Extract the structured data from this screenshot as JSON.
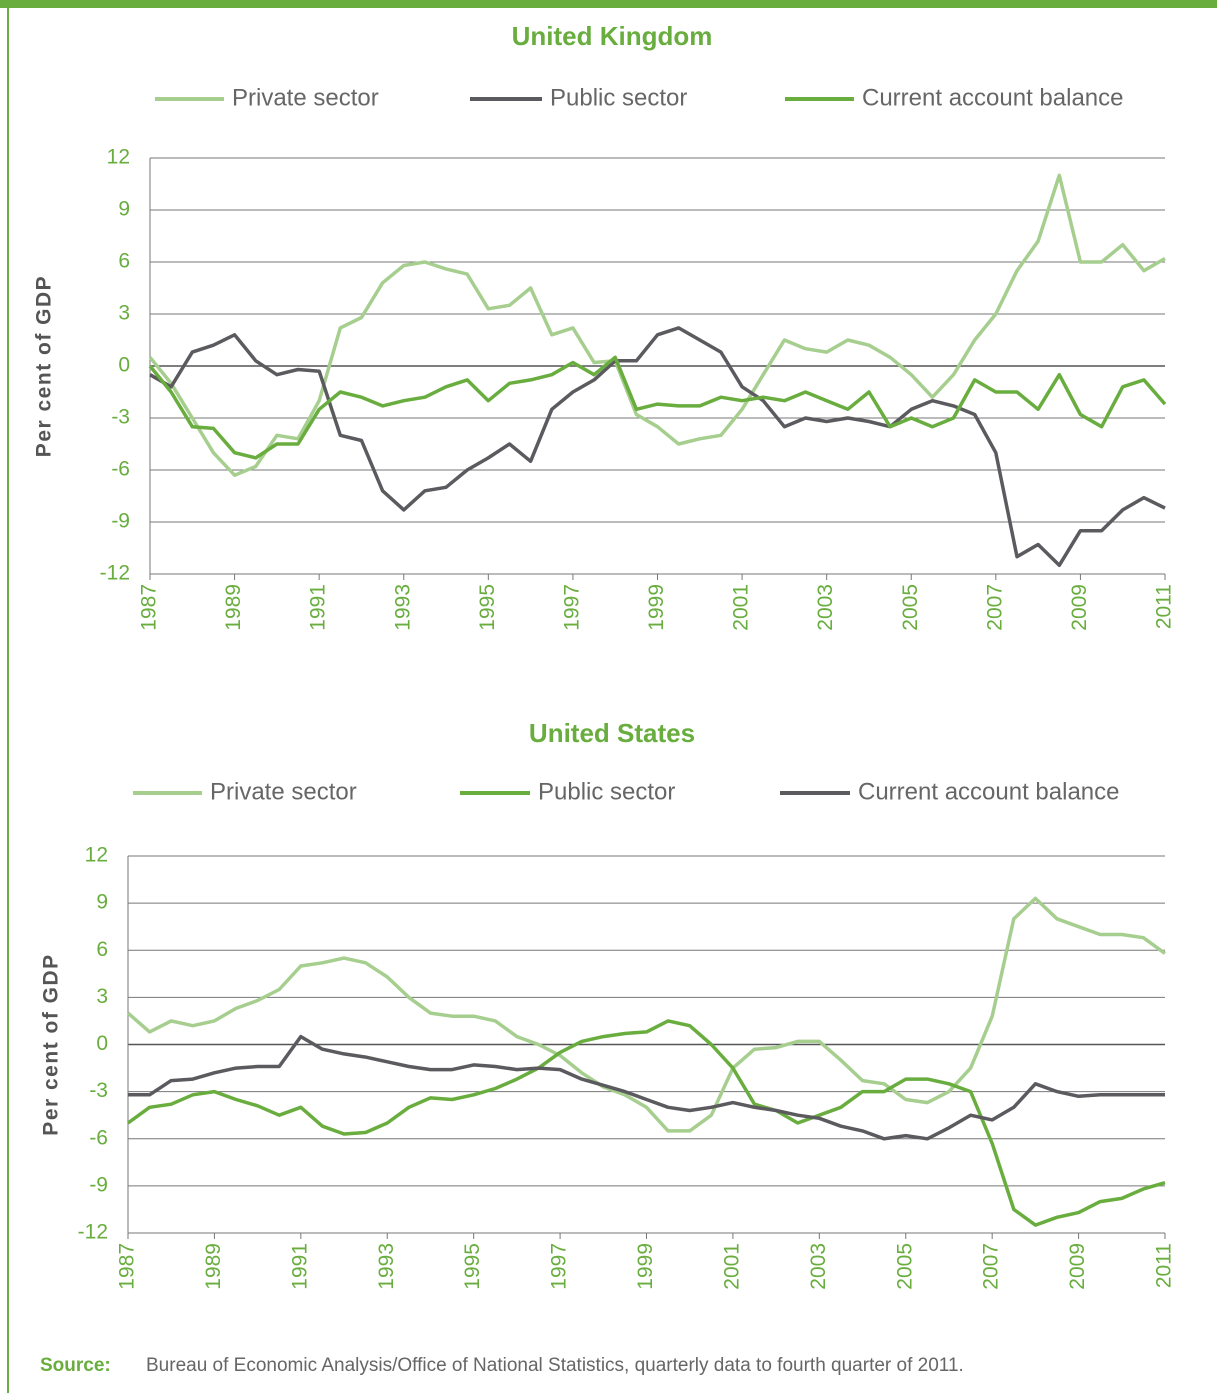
{
  "chart_data": [
    {
      "type": "line",
      "title": "United Kingdom",
      "ylabel": "Per cent of GDP",
      "x": [
        1987,
        1987.5,
        1988,
        1988.5,
        1989,
        1989.5,
        1990,
        1990.5,
        1991,
        1991.5,
        1992,
        1992.5,
        1993,
        1993.5,
        1994,
        1994.5,
        1995,
        1995.5,
        1996,
        1996.5,
        1997,
        1997.5,
        1998,
        1998.5,
        1999,
        1999.5,
        2000,
        2000.5,
        2001,
        2001.5,
        2002,
        2002.5,
        2003,
        2003.5,
        2004,
        2004.5,
        2005,
        2005.5,
        2006,
        2006.5,
        2007,
        2007.5,
        2008,
        2008.5,
        2009,
        2009.5,
        2010,
        2010.5,
        2011
      ],
      "series": [
        {
          "name": "Private sector",
          "color": "#a6ce8e",
          "values": [
            0.5,
            -1,
            -3,
            -5,
            -6.3,
            -5.8,
            -4,
            -4.2,
            -2,
            2.2,
            2.8,
            4.8,
            5.8,
            6,
            5.6,
            5.3,
            3.3,
            3.5,
            4.5,
            1.8,
            2.2,
            0.2,
            0.3,
            -2.8,
            -3.5,
            -4.5,
            -4.2,
            -4,
            -2.5,
            -0.5,
            1.5,
            1,
            0.8,
            1.5,
            1.2,
            0.5,
            -0.5,
            -1.8,
            -0.5,
            1.5,
            3,
            5.5,
            7.2,
            11,
            6,
            6,
            7,
            5.5,
            6.2
          ]
        },
        {
          "name": "Public sector",
          "color": "#5b5b5f",
          "values": [
            -0.5,
            -1.2,
            0.8,
            1.2,
            1.8,
            0.3,
            -0.5,
            -0.2,
            -0.3,
            -4,
            -4.3,
            -7.2,
            -8.3,
            -7.2,
            -7,
            -6,
            -5.3,
            -4.5,
            -5.5,
            -2.5,
            -1.5,
            -0.8,
            0.3,
            0.3,
            1.8,
            2.2,
            1.5,
            0.8,
            -1.2,
            -2,
            -3.5,
            -3,
            -3.2,
            -3,
            -3.2,
            -3.5,
            -2.5,
            -2,
            -2.3,
            -2.8,
            -5,
            -11,
            -10.3,
            -11.5,
            -9.5,
            -9.5,
            -8.3,
            -7.6,
            -8.2
          ]
        },
        {
          "name": "Current account balance",
          "color": "#68ad3e",
          "values": [
            0,
            -1.5,
            -3.5,
            -3.6,
            -5,
            -5.3,
            -4.5,
            -4.5,
            -2.5,
            -1.5,
            -1.8,
            -2.3,
            -2,
            -1.8,
            -1.2,
            -0.8,
            -2,
            -1,
            -0.8,
            -0.5,
            0.2,
            -0.5,
            0.5,
            -2.5,
            -2.2,
            -2.3,
            -2.3,
            -1.8,
            -2,
            -1.8,
            -2,
            -1.5,
            -2,
            -2.5,
            -1.5,
            -3.5,
            -3,
            -3.5,
            -3,
            -0.8,
            -1.5,
            -1.5,
            -2.5,
            -0.5,
            -2.8,
            -3.5,
            -1.2,
            -0.8,
            -2.2
          ]
        }
      ],
      "xlim": [
        1987,
        2011
      ],
      "xticks": [
        1987,
        1989,
        1991,
        1993,
        1995,
        1997,
        1999,
        2001,
        2003,
        2005,
        2007,
        2009,
        2011
      ],
      "ylim": [
        -12,
        12
      ],
      "yticks": [
        -12,
        -9,
        -6,
        -3,
        0,
        3,
        6,
        9,
        12
      ],
      "grid": true
    },
    {
      "type": "line",
      "title": "United States",
      "ylabel": "Per cent of GDP",
      "x": [
        1987,
        1987.5,
        1988,
        1988.5,
        1989,
        1989.5,
        1990,
        1990.5,
        1991,
        1991.5,
        1992,
        1992.5,
        1993,
        1993.5,
        1994,
        1994.5,
        1995,
        1995.5,
        1996,
        1996.5,
        1997,
        1997.5,
        1998,
        1998.5,
        1999,
        1999.5,
        2000,
        2000.5,
        2001,
        2001.5,
        2002,
        2002.5,
        2003,
        2003.5,
        2004,
        2004.5,
        2005,
        2005.5,
        2006,
        2006.5,
        2007,
        2007.5,
        2008,
        2008.5,
        2009,
        2009.5,
        2010,
        2010.5,
        2011
      ],
      "series": [
        {
          "name": "Private sector",
          "color": "#a6ce8e",
          "values": [
            2,
            0.8,
            1.5,
            1.2,
            1.5,
            2.3,
            2.8,
            3.5,
            5,
            5.2,
            5.5,
            5.2,
            4.3,
            3,
            2,
            1.8,
            1.8,
            1.5,
            0.5,
            0,
            -0.7,
            -1.8,
            -2.7,
            -3.2,
            -4,
            -5.5,
            -5.5,
            -4.5,
            -1.5,
            -0.3,
            -0.2,
            0.2,
            0.2,
            -1,
            -2.3,
            -2.5,
            -3.5,
            -3.7,
            -3,
            -1.5,
            1.8,
            8,
            9.3,
            8,
            7.5,
            7,
            7,
            6.8,
            5.8
          ]
        },
        {
          "name": "Public sector",
          "color": "#68ad3e",
          "values": [
            -5,
            -4,
            -3.8,
            -3.2,
            -3,
            -3.5,
            -3.9,
            -4.5,
            -4,
            -5.2,
            -5.7,
            -5.6,
            -5,
            -4,
            -3.4,
            -3.5,
            -3.2,
            -2.8,
            -2.2,
            -1.5,
            -0.5,
            0.2,
            0.5,
            0.7,
            0.8,
            1.5,
            1.2,
            0,
            -1.5,
            -3.8,
            -4.2,
            -5,
            -4.5,
            -4,
            -3,
            -3,
            -2.2,
            -2.2,
            -2.5,
            -3,
            -6.3,
            -10.5,
            -11.5,
            -11,
            -10.7,
            -10,
            -9.8,
            -9.2,
            -8.8
          ]
        },
        {
          "name": "Current account balance",
          "color": "#5b5b5f",
          "values": [
            -3.2,
            -3.2,
            -2.3,
            -2.2,
            -1.8,
            -1.5,
            -1.4,
            -1.4,
            0.5,
            -0.3,
            -0.6,
            -0.8,
            -1.1,
            -1.4,
            -1.6,
            -1.6,
            -1.3,
            -1.4,
            -1.6,
            -1.5,
            -1.6,
            -2.2,
            -2.6,
            -3,
            -3.5,
            -4,
            -4.2,
            -4,
            -3.7,
            -4,
            -4.2,
            -4.5,
            -4.7,
            -5.2,
            -5.5,
            -6,
            -5.8,
            -6,
            -5.3,
            -4.5,
            -4.8,
            -4,
            -2.5,
            -3,
            -3.3,
            -3.2,
            -3.2,
            -3.2,
            -3.2
          ]
        }
      ],
      "xlim": [
        1987,
        2011
      ],
      "xticks": [
        1987,
        1989,
        1991,
        1993,
        1995,
        1997,
        1999,
        2001,
        2003,
        2005,
        2007,
        2009,
        2011
      ],
      "ylim": [
        -12,
        12
      ],
      "yticks": [
        -12,
        -9,
        -6,
        -3,
        0,
        3,
        6,
        9,
        12
      ],
      "grid": true
    }
  ],
  "source": {
    "label": "Source:",
    "text": "Bureau of Economic Analysis/Office of National Statistics, quarterly data to fourth quarter of 2011."
  }
}
